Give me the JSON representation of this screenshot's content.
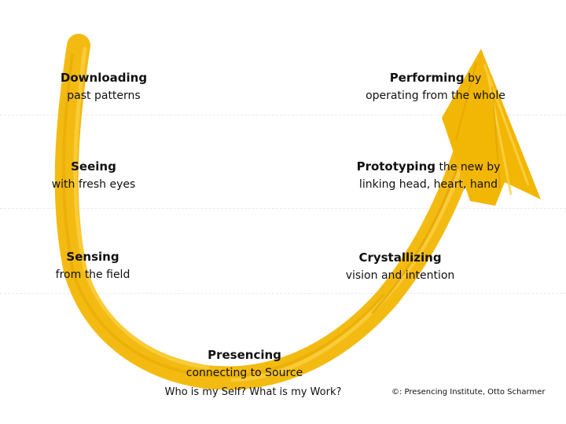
{
  "stages": {
    "downloading": {
      "title": "Downloading",
      "sub": "past patterns"
    },
    "seeing": {
      "title": "Seeing",
      "sub": "with fresh eyes"
    },
    "sensing": {
      "title": "Sensing",
      "sub": "from the field"
    },
    "presencing": {
      "title": "Presencing",
      "sub": "connecting to Source"
    },
    "crystallizing": {
      "title": "Crystallizing",
      "sub": "vision and intention"
    },
    "prototyping": {
      "title": "Prototyping",
      "title_rest": " the new by",
      "sub": "linking head, heart, hand"
    },
    "performing": {
      "title": "Performing",
      "title_rest": " by",
      "sub": "operating from the whole"
    }
  },
  "question": "Who is my Self? What is my Work?",
  "credit": "©: Presencing Institute, Otto Scharmer",
  "colors": {
    "arrow": "#f2b705",
    "arrow_dark": "#e0a200"
  }
}
